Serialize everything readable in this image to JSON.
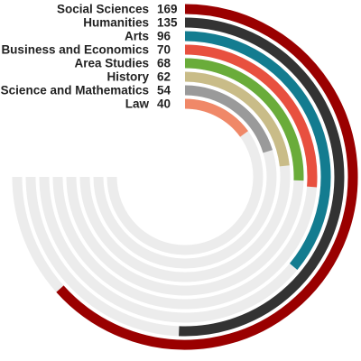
{
  "chart_data": {
    "type": "radial-bar",
    "title": "",
    "max_value": 200,
    "track_color": "#ececec",
    "series": [
      {
        "label": "Social Sciences",
        "value": 169,
        "color": "#9a0000"
      },
      {
        "label": "Humanities",
        "value": 135,
        "color": "#333333"
      },
      {
        "label": "Arts",
        "value": 96,
        "color": "#137c90"
      },
      {
        "label": "Business and Economics",
        "value": 70,
        "color": "#e8503f"
      },
      {
        "label": "Area Studies",
        "value": 68,
        "color": "#6aac3a"
      },
      {
        "label": "History",
        "value": 62,
        "color": "#c9bc88"
      },
      {
        "label": "Science and Mathematics",
        "value": 54,
        "color": "#9a9a9a"
      },
      {
        "label": "Law",
        "value": 40,
        "color": "#f08868"
      }
    ]
  }
}
